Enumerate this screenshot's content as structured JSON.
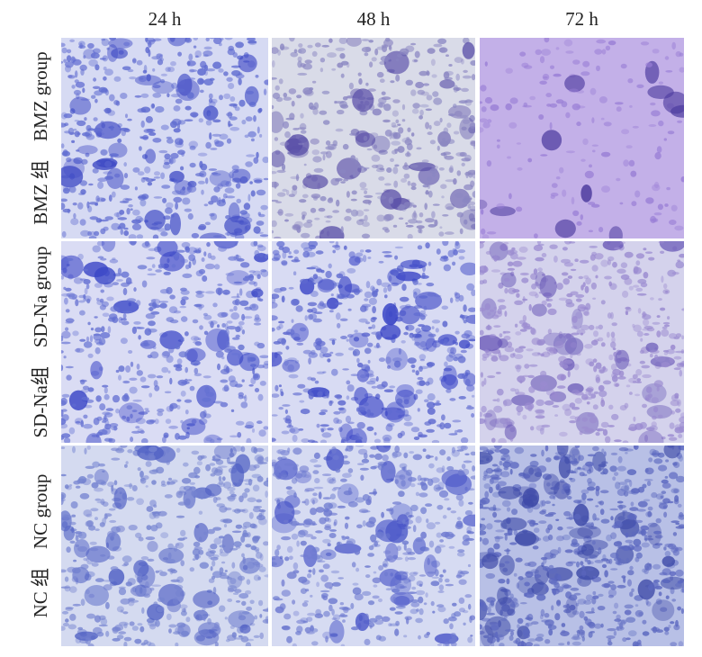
{
  "column_headers": [
    "24 h",
    "48 h",
    "72 h"
  ],
  "rows": [
    {
      "label_zh": "BMZ 组",
      "label_en": "BMZ group"
    },
    {
      "label_zh": "SD-Na组",
      "label_en": "SD-Na group"
    },
    {
      "label_zh": "NC 组",
      "label_en": "NC group"
    }
  ]
}
